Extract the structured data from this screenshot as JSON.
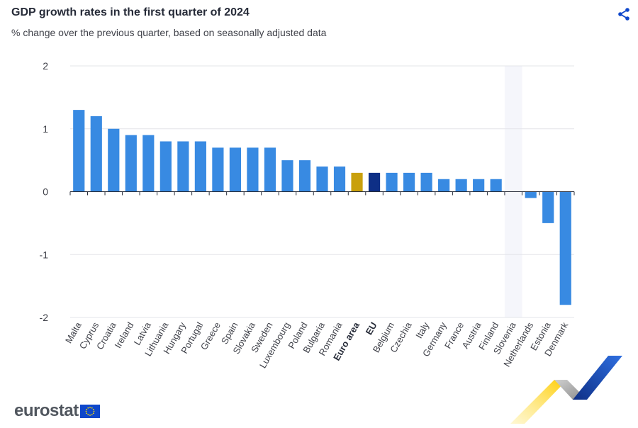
{
  "header": {
    "title": "GDP growth rates in the first quarter of 2024",
    "subtitle": "% change over the previous quarter, based on seasonally adjusted data"
  },
  "brand": {
    "name": "eurostat"
  },
  "icons": {
    "share": "share-icon",
    "flag": "eu-flag-icon"
  },
  "colors": {
    "bar": "#388ae2",
    "euro_area": "#c9a00c",
    "eu": "#0e2f86",
    "grid": "#e3e4e9",
    "zero_line": "#262b38",
    "highlight_band": "#f5f6fb"
  },
  "chart_data": {
    "type": "bar",
    "title": "GDP growth rates in the first quarter of 2024",
    "subtitle": "% change over the previous quarter, based on seasonally adjusted data",
    "xlabel": "",
    "ylabel": "",
    "ylim": [
      -2,
      2
    ],
    "yticks": [
      2,
      1,
      0,
      -1,
      -2
    ],
    "grid": true,
    "legend": "none",
    "categories": [
      "Malta",
      "Cyprus",
      "Croatia",
      "Ireland",
      "Latvia",
      "Lithuania",
      "Hungary",
      "Portugal",
      "Greece",
      "Spain",
      "Slovakia",
      "Sweden",
      "Luxembourg",
      "Poland",
      "Bulgaria",
      "Romania",
      "Euro area",
      "EU",
      "Belgium",
      "Czechia",
      "Italy",
      "Germany",
      "France",
      "Austria",
      "Finland",
      "Slovenia",
      "Netherlands",
      "Estonia",
      "Denmark"
    ],
    "values": [
      1.3,
      1.2,
      1.0,
      0.9,
      0.9,
      0.8,
      0.8,
      0.8,
      0.7,
      0.7,
      0.7,
      0.7,
      0.5,
      0.5,
      0.4,
      0.4,
      0.3,
      0.3,
      0.3,
      0.3,
      0.3,
      0.2,
      0.2,
      0.2,
      0.2,
      0.0,
      -0.1,
      -0.5,
      -1.8
    ],
    "bold_categories": [
      "Euro area",
      "EU"
    ],
    "highlighted_category": "Slovenia"
  }
}
